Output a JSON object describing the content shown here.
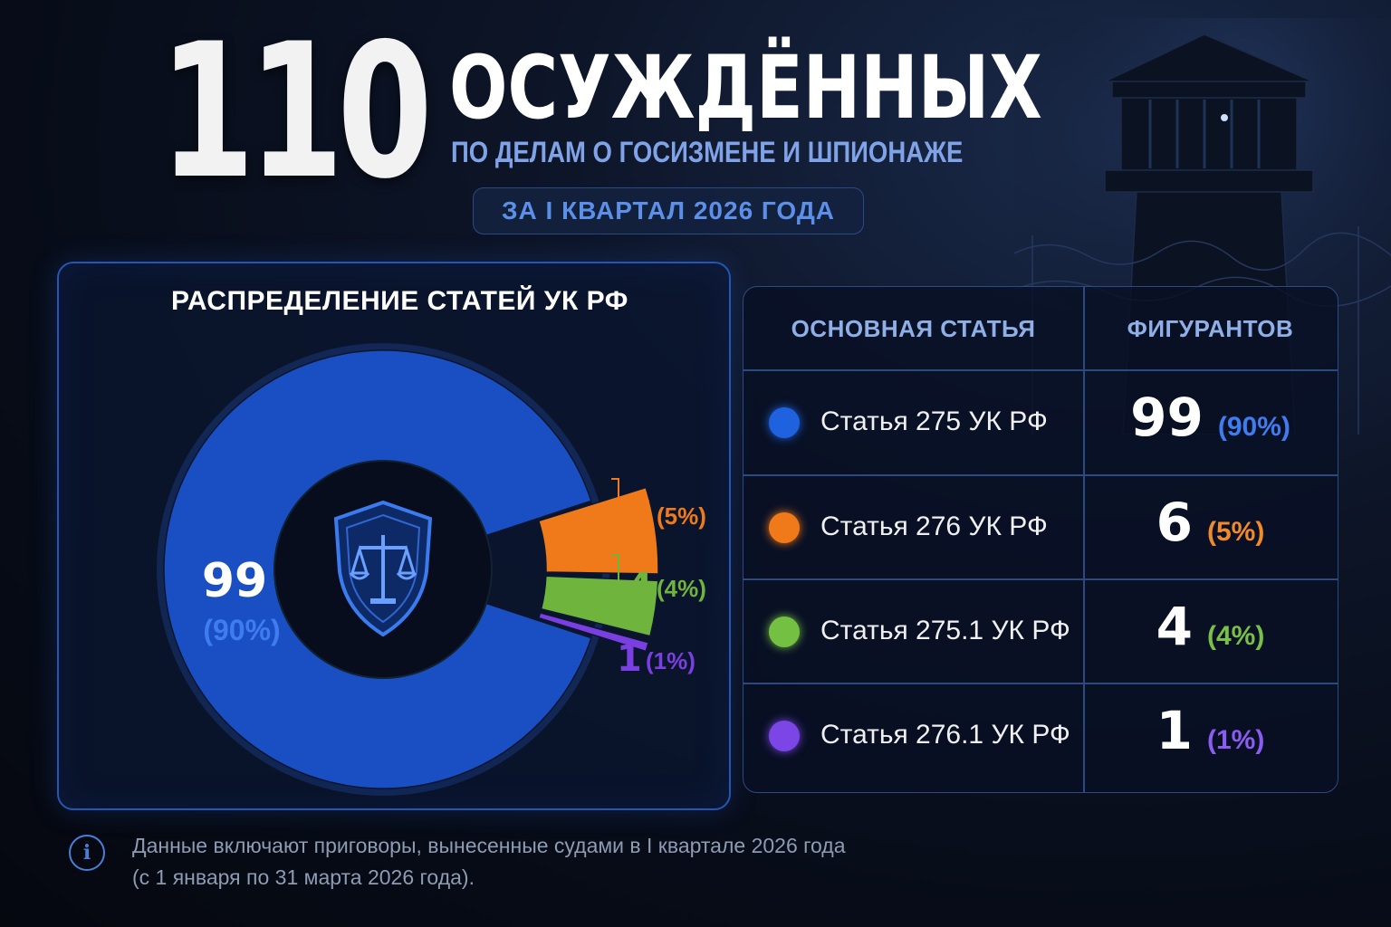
{
  "header": {
    "big_number": "110",
    "headline": "ОСУЖДЁННЫХ",
    "subheadline": "ПО ДЕЛАМ О ГОСИЗМЕНЕ И ШПИОНАЖЕ",
    "period": "ЗА I КВАРТАЛ 2026 ГОДА"
  },
  "chart_panel": {
    "title": "РАСПРЕДЕЛЕНИЕ СТАТЕЙ УК РФ",
    "center_icon": "shield-scales-icon"
  },
  "chart_data": {
    "type": "pie",
    "title": "РАСПРЕДЕЛЕНИЕ СТАТЕЙ УК РФ",
    "total": 110,
    "slices": [
      {
        "label": "Статья 275 УК РФ",
        "value": 99,
        "percent": "(90%)",
        "color": "#1a4fc4"
      },
      {
        "label": "Статья 276 УК РФ",
        "value": 6,
        "percent": "(5%)",
        "color": "#f07a1a"
      },
      {
        "label": "Статья 275.1 УК РФ",
        "value": 4,
        "percent": "(4%)",
        "color": "#6fb43c"
      },
      {
        "label": "Статья 276.1 УК РФ",
        "value": 1,
        "percent": "(1%)",
        "color": "#7a3fe0"
      }
    ]
  },
  "table": {
    "col_article": "ОСНОВНАЯ СТАТЬЯ",
    "col_count": "ФИГУРАНТОВ",
    "rows": [
      {
        "article": "Статья 275 УК РФ",
        "count": "99",
        "percent": "(90%)",
        "color": "#1f62e0",
        "pct_color": "#3f7cf0"
      },
      {
        "article": "Статья 276 УК РФ",
        "count": "6",
        "percent": "(5%)",
        "color": "#f07a1a",
        "pct_color": "#f08a2a"
      },
      {
        "article": "Статья 275.1 УК РФ",
        "count": "4",
        "percent": "(4%)",
        "color": "#74c043",
        "pct_color": "#78c048"
      },
      {
        "article": "Статья 276.1 УК РФ",
        "count": "1",
        "percent": "(1%)",
        "color": "#7c45e6",
        "pct_color": "#8a5cf0"
      }
    ]
  },
  "footnote": {
    "icon": "info-icon",
    "line1": "Данные включают приговоры, вынесенные судами в I квартале 2026 года",
    "line2": "(с 1 января по 31 марта 2026 года)."
  },
  "colors": {
    "accent": "#2556b3",
    "background": "#070c18"
  }
}
